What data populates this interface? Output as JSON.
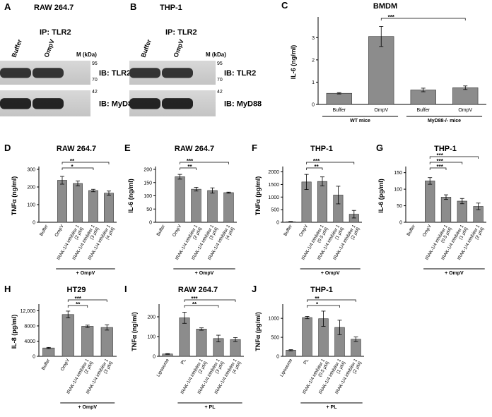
{
  "blots": [
    {
      "panel": "A",
      "title": "RAW 264.7",
      "ip": "IP: TLR2",
      "lanes": [
        "Buffer",
        "OmpV"
      ],
      "marker_lane": "M (kDa)",
      "markers": [
        "95",
        "70",
        "42"
      ],
      "ib": [
        "IB: TLR2",
        "IB: MyD88"
      ]
    },
    {
      "panel": "B",
      "title": "THP-1",
      "ip": "IP: TLR2",
      "lanes": [
        "Buffer",
        "OmpV"
      ],
      "marker_lane": "M (kDa)",
      "markers": [
        "95",
        "70",
        "42"
      ],
      "ib": [
        "IB: TLR2",
        "IB: MyD88"
      ]
    }
  ],
  "chart_data": [
    {
      "type": "bar",
      "panel": "C",
      "title": "BMDM",
      "y_label": "IL-6 (ng/ml)",
      "categories": [
        "Buffer",
        "OmpV",
        "Buffer",
        "OmpV"
      ],
      "values": [
        0.5,
        3.05,
        0.65,
        0.75
      ],
      "errors": [
        0.03,
        0.45,
        0.08,
        0.08
      ],
      "ylim": [
        0,
        3.8
      ],
      "yticks": [
        0,
        1,
        2,
        3
      ],
      "groups": [
        "WT mice",
        "MyD88-/- mice"
      ],
      "significance": [
        "***"
      ],
      "color": "#8c8c8c"
    },
    {
      "type": "bar",
      "panel": "D",
      "title": "RAW 264.7",
      "y_label": "TNFα (ng/ml)",
      "categories": [
        "Buffer",
        "OmpV",
        "IRAK-1/4 inhibitor 1 (2 µM)",
        "IRAK-1/4 inhibitor 1 (3 µM)",
        "IRAK-1/4 inhibitor 1 (4 µM)"
      ],
      "values": [
        0,
        238,
        220,
        180,
        165
      ],
      "errors": [
        0,
        22,
        14,
        7,
        12
      ],
      "ylim": [
        0,
        300
      ],
      "yticks": [
        0,
        100,
        200,
        300
      ],
      "groups": [
        "+ OmpV"
      ],
      "significance": [
        "*",
        "**"
      ],
      "color": "#8c8c8c"
    },
    {
      "type": "bar",
      "panel": "E",
      "title": "RAW 264.7",
      "y_label": "IL-6 (ng/ml)",
      "categories": [
        "Buffer",
        "OmpV",
        "IRAK-1/4 inhibitor 1 (2 µM)",
        "IRAK-1/4 inhibitor 1 (3 µM)",
        "IRAK-1/4 inhibitor 1 (4 µM)"
      ],
      "values": [
        0,
        172,
        125,
        120,
        112
      ],
      "errors": [
        0,
        9,
        7,
        10,
        2
      ],
      "ylim": [
        0,
        200
      ],
      "yticks": [
        0,
        50,
        100,
        150,
        200
      ],
      "groups": [
        "+ OmpV"
      ],
      "significance": [
        "**",
        "***"
      ],
      "color": "#8c8c8c"
    },
    {
      "type": "bar",
      "panel": "F",
      "title": "THP-1",
      "y_label": "TNFα (pg/ml)",
      "categories": [
        "Buffer",
        "OmpV",
        "IRAK-1/4 inhibitor 1 (0.5 µM)",
        "IRAK-1/4 inhibitor 1 (1 µM)",
        "IRAK-1/4 inhibitor 1 (2 µM)"
      ],
      "values": [
        20,
        1600,
        1620,
        1080,
        320
      ],
      "errors": [
        10,
        300,
        180,
        350,
        150
      ],
      "ylim": [
        0,
        2100
      ],
      "yticks": [
        0,
        500,
        1000,
        1500,
        2000
      ],
      "groups": [
        "+ OmpV"
      ],
      "significance": [
        "**",
        "***"
      ],
      "color": "#8c8c8c"
    },
    {
      "type": "bar",
      "panel": "G",
      "title": "THP-1",
      "y_label": "IL-6 (pg/ml)",
      "categories": [
        "Buffer",
        "OmpV",
        "IRAK-1/4 inhibitor 1 (0.5 µM)",
        "IRAK-1/4 inhibitor 1 (1 µM)",
        "IRAK-1/4 inhibitor 1 (2 µM)"
      ],
      "values": [
        0,
        125,
        76,
        64,
        48
      ],
      "errors": [
        0,
        10,
        7,
        8,
        10
      ],
      "ylim": [
        0,
        160
      ],
      "yticks": [
        0,
        50,
        100,
        150
      ],
      "groups": [
        "+ OmpV"
      ],
      "significance": [
        "***",
        "***",
        "***"
      ],
      "color": "#8c8c8c"
    },
    {
      "type": "bar",
      "panel": "H",
      "title": "HT29",
      "y_label": "IL-8 (pg/ml)",
      "categories": [
        "Buffer",
        "OmpV",
        "IRAK-1/4 inhibitor 1 (2 µM)",
        "IRAK-1/4 inhibitor 1 (3 µM)"
      ],
      "values": [
        2200,
        11000,
        7900,
        7600
      ],
      "errors": [
        150,
        900,
        300,
        700
      ],
      "ylim": [
        0,
        13000
      ],
      "yticks": [
        0,
        4000,
        8000,
        {
          "value": 12000,
          "label": "12,000"
        }
      ],
      "groups": [
        "+ OmpV"
      ],
      "significance": [
        "**",
        "***"
      ],
      "color": "#8c8c8c"
    },
    {
      "type": "bar",
      "panel": "I",
      "title": "RAW 264.7",
      "y_label": "TNFα (ng/ml)",
      "categories": [
        "Liposome",
        "PL",
        "IRAK-1/4 inhibitor 1 (2 µM)",
        "IRAK-1/4 inhibitor 1 (3 µM)",
        "IRAK-1/4 inhibitor 1 (4 µM)"
      ],
      "values": [
        12,
        195,
        138,
        90,
        85
      ],
      "errors": [
        2,
        28,
        6,
        17,
        10
      ],
      "ylim": [
        0,
        250
      ],
      "yticks": [
        0,
        100,
        200
      ],
      "groups": [
        "+ PL"
      ],
      "significance": [
        "**",
        "***"
      ],
      "color": "#8c8c8c"
    },
    {
      "type": "bar",
      "panel": "J",
      "title": "THP-1",
      "y_label": "TNFα (pg/ml)",
      "categories": [
        "Liposome",
        "PL",
        "IRAK-1/4 inhibitor 1 (0.5 µM)",
        "IRAK-1/4 inhibitor 1 (1 µM)",
        "IRAK-1/4 inhibitor 1 (2 µM)"
      ],
      "values": [
        160,
        1020,
        990,
        760,
        450
      ],
      "errors": [
        15,
        30,
        200,
        190,
        60
      ],
      "ylim": [
        0,
        1300
      ],
      "yticks": [
        0,
        500,
        1000
      ],
      "groups": [
        "+ PL"
      ],
      "significance": [
        "*",
        "**"
      ],
      "color": "#8c8c8c"
    }
  ]
}
